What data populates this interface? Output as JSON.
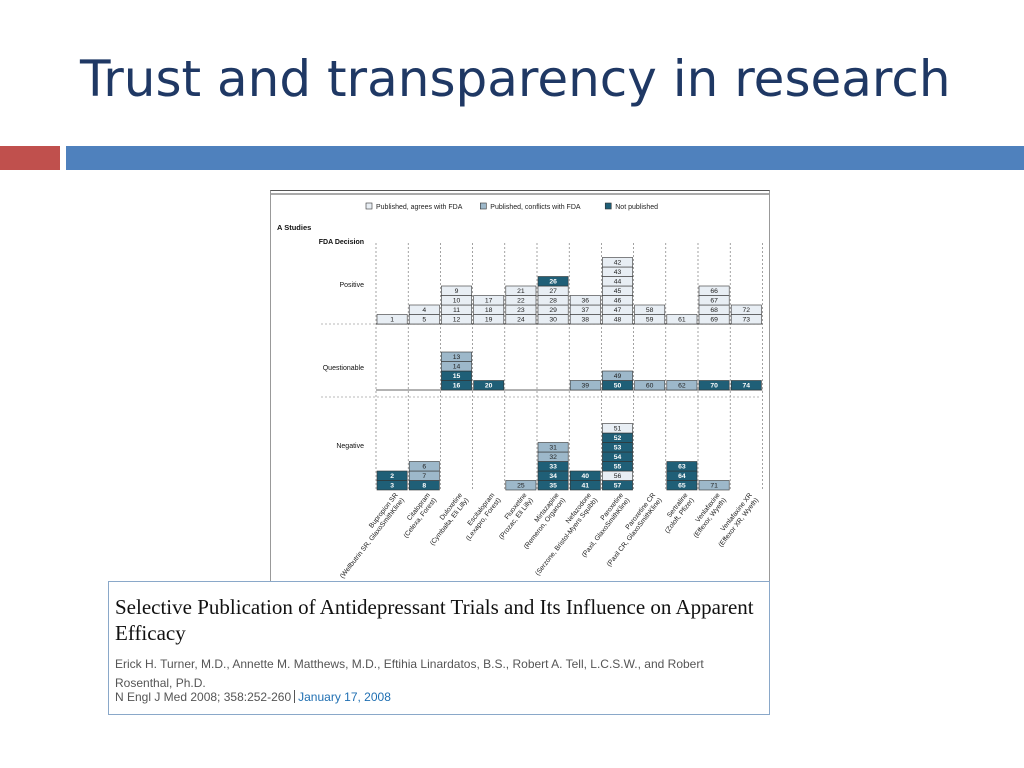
{
  "slide": {
    "title": "Trust and transparency in research",
    "colors": {
      "title": "#1f3864",
      "accent_red": "#c0504d",
      "accent_blue": "#4f81bd"
    }
  },
  "figure": {
    "legend": [
      {
        "label": "Published, agrees with FDA",
        "color": "#e8eef4"
      },
      {
        "label": "Published, conflicts with FDA",
        "color": "#9db8ca"
      },
      {
        "label": "Not published",
        "color": "#1f5f77"
      }
    ],
    "panel_label": "A  Studies",
    "fda_decision_label": "FDA Decision",
    "row_labels": [
      "Positive",
      "Questionable",
      "Negative"
    ],
    "drugs": [
      {
        "name": "Bupropion SR",
        "company": "(Wellbutrin SR, GlaxoSmithKline)"
      },
      {
        "name": "Citalopram",
        "company": "(Celexa, Forest)"
      },
      {
        "name": "Duloxetine",
        "company": "(Cymbalta, Eli Lilly)"
      },
      {
        "name": "Escitalopram",
        "company": "(Lexapro, Forest)"
      },
      {
        "name": "Fluoxetine",
        "company": "(Prozac, Eli Lilly)"
      },
      {
        "name": "Mirtazapine",
        "company": "(Remeron, Organon)"
      },
      {
        "name": "Nefazodone",
        "company": "(Serzone, Bristol-Myers Squibb)"
      },
      {
        "name": "Paroxetine",
        "company": "(Paxil, GlaxoSmithKline)"
      },
      {
        "name": "Paroxetine CR",
        "company": "(Paxil CR, GlaxoSmithKline)"
      },
      {
        "name": "Sertraline",
        "company": "(Zoloft, Pfizer)"
      },
      {
        "name": "Venlafaxine",
        "company": "(Effexor, Wyeth)"
      },
      {
        "name": "Venlafaxine XR",
        "company": "(Effexor XR, Wyeth)"
      }
    ],
    "studies": {
      "positive": [
        [
          [
            "1",
            "a"
          ]
        ],
        [
          [
            "5",
            "a"
          ],
          [
            "4",
            "a"
          ]
        ],
        [
          [
            "12",
            "a"
          ],
          [
            "11",
            "a"
          ],
          [
            "10",
            "a"
          ],
          [
            "9",
            "a"
          ]
        ],
        [
          [
            "19",
            "a"
          ],
          [
            "18",
            "a"
          ],
          [
            "17",
            "a"
          ]
        ],
        [
          [
            "24",
            "a"
          ],
          [
            "23",
            "a"
          ],
          [
            "22",
            "a"
          ],
          [
            "21",
            "a"
          ]
        ],
        [
          [
            "30",
            "a"
          ],
          [
            "29",
            "a"
          ],
          [
            "28",
            "a"
          ],
          [
            "27",
            "a"
          ],
          [
            "26",
            "u"
          ]
        ],
        [
          [
            "38",
            "a"
          ],
          [
            "37",
            "a"
          ],
          [
            "36",
            "a"
          ]
        ],
        [
          [
            "48",
            "a"
          ],
          [
            "47",
            "a"
          ],
          [
            "46",
            "a"
          ],
          [
            "45",
            "a"
          ],
          [
            "44",
            "a"
          ],
          [
            "43",
            "a"
          ],
          [
            "42",
            "a"
          ]
        ],
        [
          [
            "59",
            "a"
          ],
          [
            "58",
            "a"
          ]
        ],
        [
          [
            "61",
            "a"
          ]
        ],
        [
          [
            "69",
            "a"
          ],
          [
            "68",
            "a"
          ],
          [
            "67",
            "a"
          ],
          [
            "66",
            "a"
          ]
        ],
        [
          [
            "73",
            "a"
          ],
          [
            "72",
            "a"
          ]
        ]
      ],
      "questionable": [
        [],
        [],
        [
          [
            "16",
            "u"
          ],
          [
            "15",
            "u"
          ],
          [
            "14",
            "c"
          ],
          [
            "13",
            "c"
          ]
        ],
        [
          [
            "20",
            "u"
          ]
        ],
        [],
        [],
        [
          [
            "39",
            "c"
          ]
        ],
        [
          [
            "50",
            "u"
          ],
          [
            "49",
            "c"
          ]
        ],
        [
          [
            "60",
            "c"
          ]
        ],
        [
          [
            "62",
            "c"
          ]
        ],
        [
          [
            "70",
            "u"
          ]
        ],
        [
          [
            "74",
            "u"
          ]
        ]
      ],
      "negative": [
        [
          [
            "3",
            "u"
          ],
          [
            "2",
            "u"
          ]
        ],
        [
          [
            "8",
            "u"
          ],
          [
            "7",
            "c"
          ],
          [
            "6",
            "c"
          ]
        ],
        [],
        [],
        [
          [
            "25",
            "c"
          ]
        ],
        [
          [
            "35",
            "u"
          ],
          [
            "34",
            "u"
          ],
          [
            "33",
            "u"
          ],
          [
            "32",
            "c"
          ],
          [
            "31",
            "c"
          ]
        ],
        [
          [
            "41",
            "u"
          ],
          [
            "40",
            "u"
          ]
        ],
        [
          [
            "57",
            "u"
          ],
          [
            "56",
            "a"
          ],
          [
            "55",
            "u"
          ],
          [
            "54",
            "u"
          ],
          [
            "53",
            "u"
          ],
          [
            "52",
            "u"
          ],
          [
            "51",
            "a"
          ]
        ],
        [],
        [
          [
            "65",
            "u"
          ],
          [
            "64",
            "u"
          ],
          [
            "63",
            "u"
          ]
        ],
        [
          [
            "71",
            "c"
          ]
        ],
        []
      ]
    }
  },
  "citation": {
    "title": "Selective Publication of Antidepressant Trials and Its Influence on Apparent Efficacy",
    "authors": "Erick H. Turner, M.D., Annette M. Matthews, M.D., Eftihia Linardatos, B.S., Robert A. Tell, L.C.S.W., and Robert Rosenthal, Ph.D.",
    "journal": "N Engl J Med 2008; 358:252-260",
    "date": "January 17, 2008"
  }
}
